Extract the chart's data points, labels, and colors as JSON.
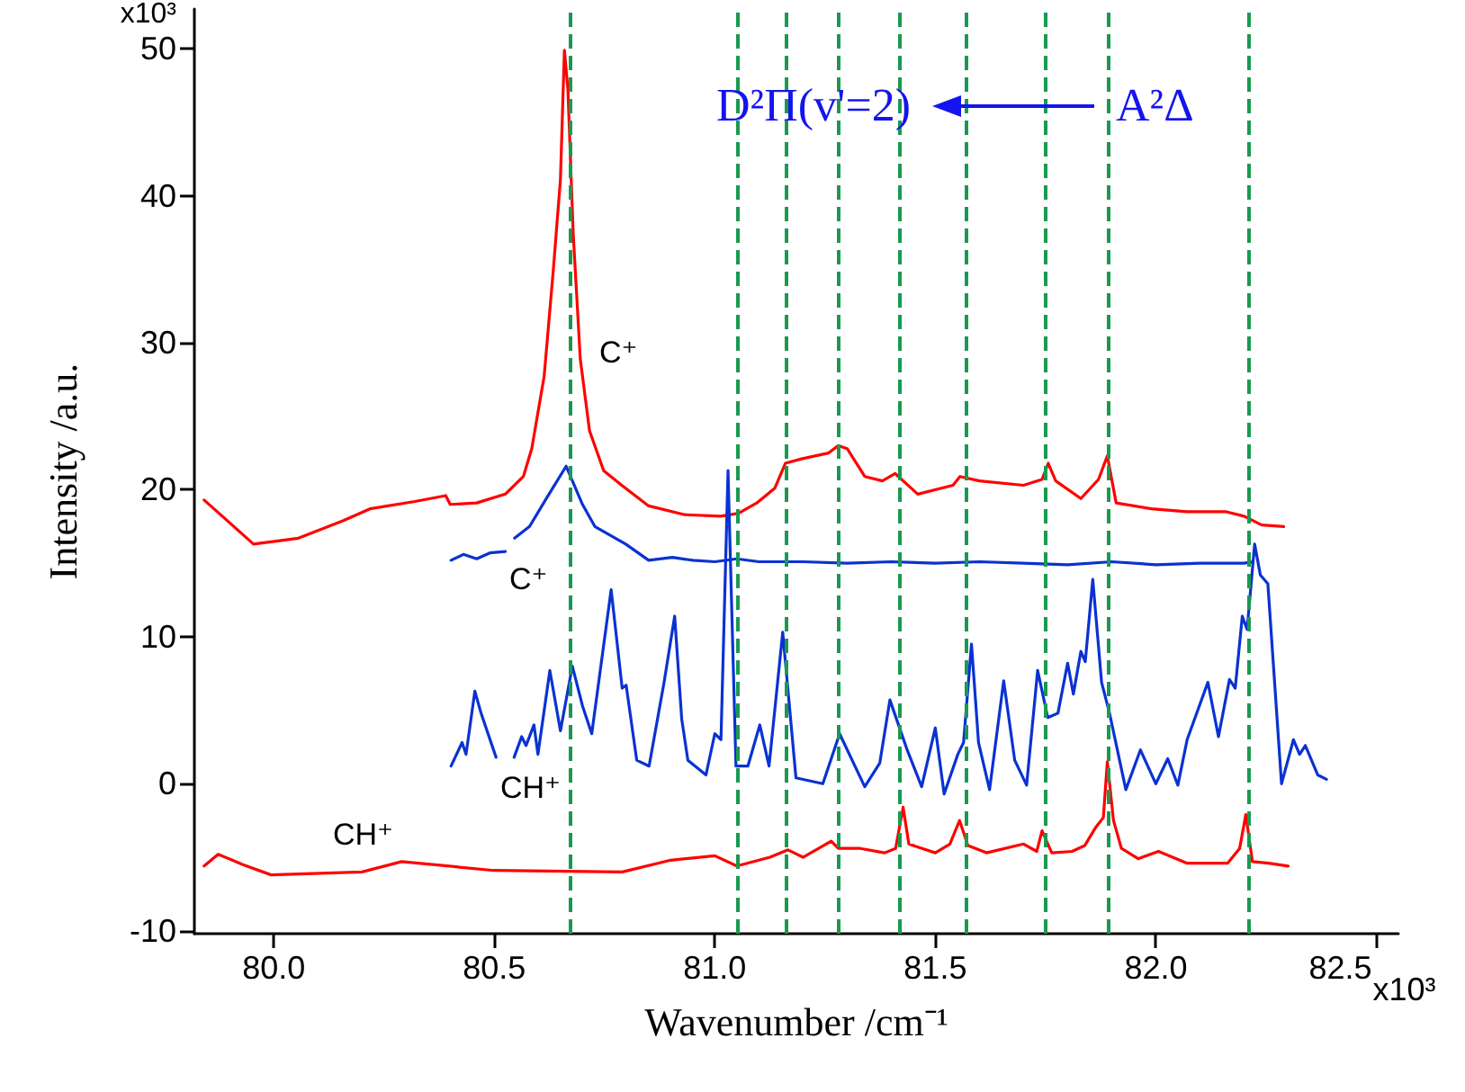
{
  "chart_data": {
    "type": "line",
    "xlabel": "Wavenumber /cm⁻¹",
    "ylabel": "Intensity /a.u.",
    "xlim": [
      79.82,
      82.55
    ],
    "ylim": [
      -10.2,
      52.7
    ],
    "xticks": [
      {
        "value": 80,
        "label": "80.0"
      },
      {
        "value": 80.5,
        "label": "80.5"
      },
      {
        "value": 81,
        "label": "81.0"
      },
      {
        "value": 81.5,
        "label": "81.5"
      },
      {
        "value": 82,
        "label": "82.0"
      },
      {
        "value": 82.5,
        "label": "82.5"
      }
    ],
    "yticks": [
      -10,
      0,
      10,
      20,
      30,
      40,
      50
    ],
    "series": [
      {
        "color": "#ff0000",
        "x": [
          79.842,
          79.954,
          80.056,
          80.158,
          80.218,
          80.32,
          80.39,
          80.4,
          80.46,
          80.525,
          80.566,
          80.585,
          80.613,
          80.634,
          80.65,
          80.659,
          80.667,
          80.679,
          80.695,
          80.716,
          80.748,
          80.789,
          80.85,
          80.932,
          81.013,
          81.054,
          81.095,
          81.136,
          81.16,
          81.197,
          81.258,
          81.28,
          81.3,
          81.34,
          81.38,
          81.409,
          81.46,
          81.54,
          81.556,
          81.6,
          81.7,
          81.742,
          81.756,
          81.773,
          81.83,
          81.87,
          81.89,
          81.91,
          81.99,
          82.07,
          82.16,
          82.2,
          82.24,
          82.29
        ],
        "values": [
          19.3,
          16.3,
          16.7,
          17.9,
          18.7,
          19.2,
          19.6,
          19.0,
          19.1,
          19.7,
          20.9,
          22.8,
          27.7,
          35.0,
          41.1,
          49.9,
          47.2,
          37.4,
          28.9,
          24.0,
          21.3,
          20.3,
          18.9,
          18.3,
          18.2,
          18.4,
          19.1,
          20.1,
          21.8,
          22.1,
          22.5,
          23.0,
          22.8,
          20.9,
          20.6,
          21.1,
          19.7,
          20.3,
          20.9,
          20.6,
          20.3,
          20.7,
          21.8,
          20.6,
          19.4,
          20.7,
          22.3,
          19.1,
          18.7,
          18.5,
          18.5,
          18.2,
          17.6,
          17.5
        ]
      },
      {
        "color": "#0a32d2",
        "x": [
          80.402,
          80.43,
          80.46,
          80.49,
          80.525,
          80.535,
          80.546,
          80.58,
          80.62,
          80.663,
          80.7,
          80.728,
          80.798,
          80.85,
          80.904,
          80.95,
          81.0,
          81.05,
          81.1,
          81.2,
          81.3,
          81.4,
          81.5,
          81.6,
          81.7,
          81.8,
          81.9,
          82.0,
          82.1,
          82.2,
          82.22
        ],
        "values": [
          15.2,
          15.6,
          15.3,
          15.7,
          15.8,
          null,
          16.7,
          17.5,
          19.5,
          21.6,
          19.0,
          17.5,
          16.3,
          15.2,
          15.4,
          15.2,
          15.1,
          15.3,
          15.1,
          15.1,
          15.0,
          15.1,
          15.0,
          15.1,
          15.0,
          14.9,
          15.1,
          14.9,
          15.0,
          15.0,
          15.1
        ]
      },
      {
        "color": "#0a32d2",
        "x": [
          80.402,
          80.427,
          80.436,
          80.456,
          80.47,
          80.504,
          80.525,
          80.545,
          80.562,
          80.572,
          80.59,
          80.599,
          80.626,
          80.65,
          80.677,
          80.7,
          80.721,
          80.765,
          80.79,
          80.799,
          80.823,
          80.851,
          80.885,
          80.909,
          80.925,
          80.939,
          80.98,
          81.0,
          81.014,
          81.03,
          81.048,
          81.075,
          81.102,
          81.123,
          81.154,
          81.184,
          81.245,
          81.283,
          81.34,
          81.374,
          81.397,
          81.435,
          81.469,
          81.5,
          81.52,
          81.551,
          81.564,
          81.582,
          81.598,
          81.623,
          81.655,
          81.68,
          81.707,
          81.732,
          81.755,
          81.778,
          81.8,
          81.813,
          81.83,
          81.84,
          81.857,
          81.877,
          81.895,
          81.932,
          81.965,
          82.0,
          82.027,
          82.05,
          82.071,
          82.118,
          82.142,
          82.167,
          82.18,
          82.196,
          82.207,
          82.224,
          82.237,
          82.254,
          82.285,
          82.312,
          82.326,
          82.339,
          82.367,
          82.387
        ],
        "values": [
          1.2,
          2.8,
          2.0,
          6.3,
          4.8,
          1.8,
          null,
          1.8,
          3.2,
          2.6,
          4.0,
          2.0,
          7.7,
          3.6,
          8.0,
          5.3,
          3.4,
          13.2,
          6.5,
          6.7,
          1.6,
          1.2,
          6.9,
          11.4,
          4.4,
          1.6,
          0.6,
          3.4,
          3.0,
          21.3,
          1.2,
          1.2,
          4.0,
          1.2,
          10.3,
          0.4,
          0.0,
          3.4,
          -0.2,
          1.4,
          5.7,
          2.4,
          -0.2,
          3.8,
          -0.7,
          2.0,
          2.8,
          9.5,
          2.8,
          -0.4,
          7.0,
          1.6,
          -0.1,
          7.7,
          4.5,
          4.8,
          8.2,
          6.1,
          9.0,
          8.3,
          13.9,
          6.9,
          4.8,
          -0.4,
          2.3,
          0.0,
          1.7,
          -0.1,
          3.0,
          6.9,
          3.2,
          7.1,
          6.5,
          11.4,
          10.5,
          16.3,
          14.2,
          13.6,
          0.0,
          3.0,
          2.0,
          2.6,
          0.6,
          0.3
        ]
      },
      {
        "color": "#ff0000",
        "x": [
          79.842,
          79.874,
          79.93,
          79.994,
          80.2,
          80.29,
          80.5,
          80.79,
          80.9,
          81.0,
          81.05,
          81.125,
          81.166,
          81.2,
          81.264,
          81.28,
          81.33,
          81.385,
          81.41,
          81.427,
          81.44,
          81.5,
          81.533,
          81.555,
          81.574,
          81.616,
          81.7,
          81.73,
          81.742,
          81.764,
          81.81,
          81.839,
          81.863,
          81.881,
          81.89,
          81.904,
          81.922,
          81.96,
          82.006,
          82.07,
          82.163,
          82.19,
          82.204,
          82.219,
          82.256,
          82.3
        ],
        "values": [
          -5.6,
          -4.8,
          -5.5,
          -6.2,
          -6.0,
          -5.3,
          -5.9,
          -6.0,
          -5.2,
          -4.9,
          -5.6,
          -5.0,
          -4.5,
          -5.0,
          -3.9,
          -4.4,
          -4.4,
          -4.7,
          -4.4,
          -1.6,
          -4.1,
          -4.7,
          -4.1,
          -2.5,
          -4.2,
          -4.7,
          -4.1,
          -4.6,
          -3.2,
          -4.7,
          -4.6,
          -4.2,
          -3.0,
          -2.3,
          1.5,
          -2.5,
          -4.4,
          -5.1,
          -4.6,
          -5.4,
          -5.4,
          -4.4,
          -2.1,
          -5.3,
          -5.4,
          -5.6
        ]
      }
    ],
    "ref_lines": [
      {
        "axis": "x",
        "value": 80.665,
        "color": "#1a9a50",
        "line_style": "dashed"
      },
      {
        "axis": "x",
        "value": 81.05,
        "color": "#1a9a50",
        "line_style": "dashed"
      },
      {
        "axis": "x",
        "value": 81.16,
        "color": "#1a9a50",
        "line_style": "dashed"
      },
      {
        "axis": "x",
        "value": 81.28,
        "color": "#1a9a50",
        "line_style": "dashed"
      },
      {
        "axis": "x",
        "value": 81.42,
        "color": "#1a9a50",
        "line_style": "dashed"
      },
      {
        "axis": "x",
        "value": 81.57,
        "color": "#1a9a50",
        "line_style": "dashed"
      },
      {
        "axis": "x",
        "value": 81.75,
        "color": "#1a9a50",
        "line_style": "dashed"
      },
      {
        "axis": "x",
        "value": 81.89,
        "color": "#1a9a50",
        "line_style": "dashed"
      },
      {
        "axis": "x",
        "value": 82.21,
        "color": "#1a9a50",
        "line_style": "dashed"
      }
    ],
    "annotations": [
      "D²Π(v'=2)",
      "A²Δ",
      "C⁺",
      "C⁺",
      "CH⁺",
      "CH⁺",
      "x10³",
      "x10³"
    ]
  }
}
